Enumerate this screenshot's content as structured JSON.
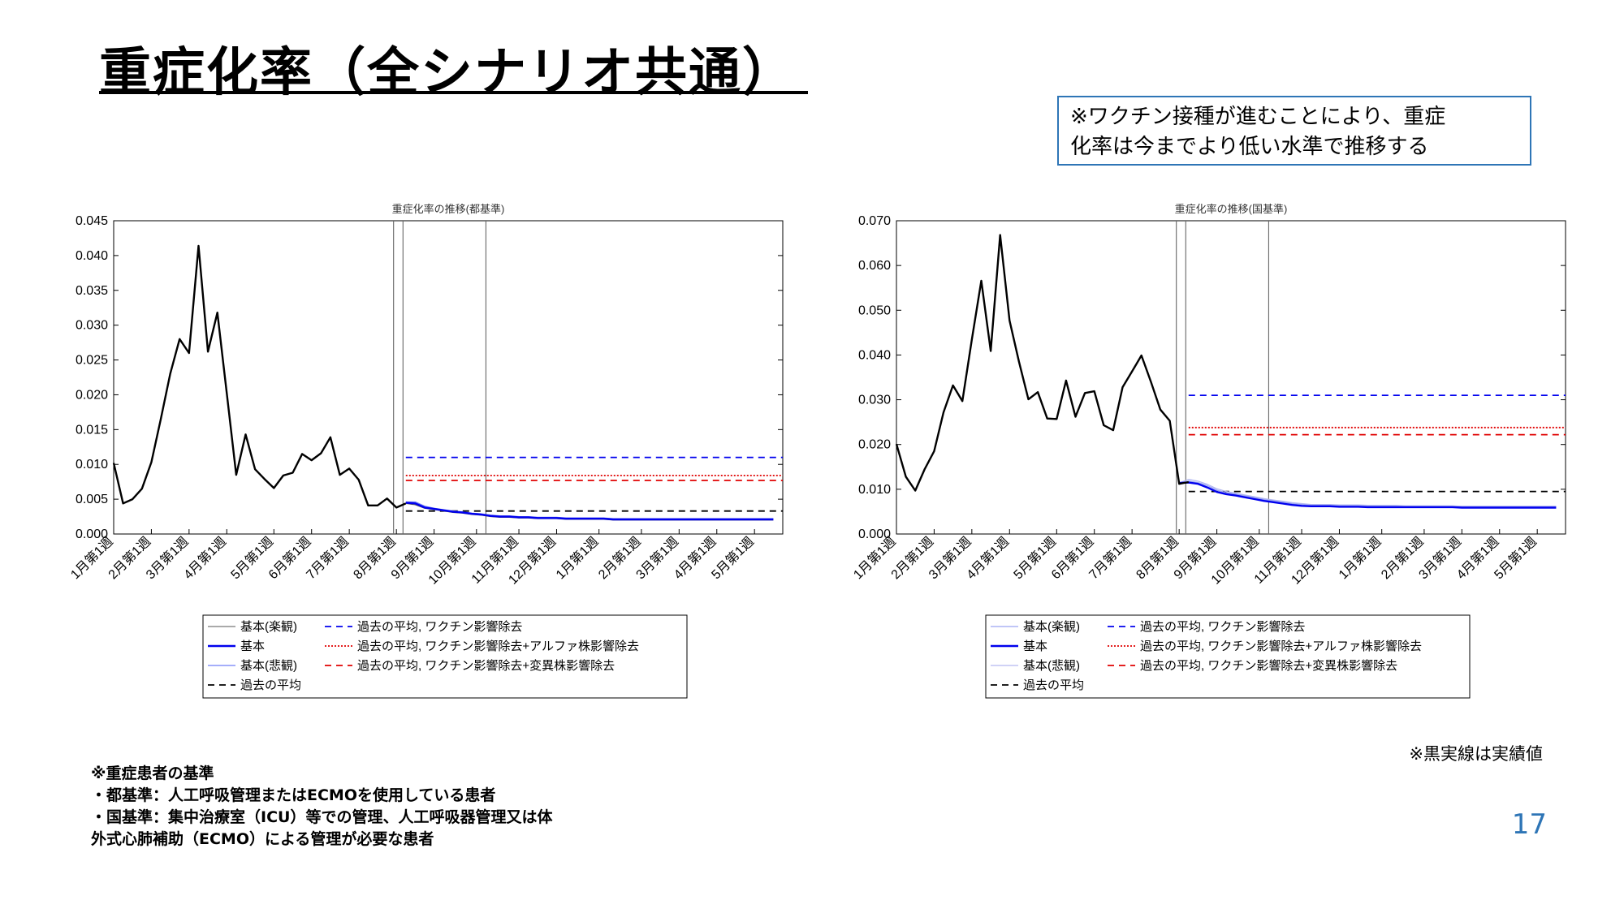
{
  "slide": {
    "title": "重症化率（全シナリオ共通）",
    "callout_line1": "※ワクチン接種が進むことにより、重症",
    "callout_line2": "化率は今までより低い水準で推移する",
    "footnote": "※重症患者の基準\n・都基準：人工呼吸管理またはECMOを使用している患者\n・国基準：集中治療室（ICU）等での管理、人工呼吸器管理又は体\n外式心肺補助（ECMO）による管理が必要な患者",
    "actual_note": "※黒実線は実績値",
    "page_number": "17"
  },
  "chart_data": [
    {
      "type": "line",
      "title": "重症化率の推移(都基準)",
      "xlabel": "",
      "ylabel": "",
      "ylim": [
        0,
        0.045
      ],
      "yticks": [
        "0.000",
        "0.005",
        "0.010",
        "0.015",
        "0.020",
        "0.025",
        "0.030",
        "0.035",
        "0.040",
        "0.045"
      ],
      "xlim": [
        0,
        71
      ],
      "xticks": [
        {
          "x": 0,
          "label": "1月第1週"
        },
        {
          "x": 4,
          "label": "2月第1週"
        },
        {
          "x": 8,
          "label": "3月第1週"
        },
        {
          "x": 12,
          "label": "4月第1週"
        },
        {
          "x": 17,
          "label": "5月第1週"
        },
        {
          "x": 21,
          "label": "6月第1週"
        },
        {
          "x": 25,
          "label": "7月第1週"
        },
        {
          "x": 30,
          "label": "8月第1週"
        },
        {
          "x": 34,
          "label": "9月第1週"
        },
        {
          "x": 38.5,
          "label": "10月第1週"
        },
        {
          "x": 43,
          "label": "11月第1週"
        },
        {
          "x": 47,
          "label": "12月第1週"
        },
        {
          "x": 51.5,
          "label": "1月第1週"
        },
        {
          "x": 56,
          "label": "2月第1週"
        },
        {
          "x": 60,
          "label": "3月第1週"
        },
        {
          "x": 64,
          "label": "4月第1週"
        },
        {
          "x": 68,
          "label": "5月第1週"
        }
      ],
      "vlines": [
        29.7,
        30.7,
        39.5
      ],
      "grid": false,
      "legend_position": "bottom",
      "series": [
        {
          "name": "実績",
          "style": "actual",
          "color": "#000000",
          "x_start": 0,
          "values": [
            0.0102,
            0.0044,
            0.005,
            0.0065,
            0.0103,
            0.0165,
            0.023,
            0.028,
            0.026,
            0.0414,
            0.0262,
            0.0318,
            0.0202,
            0.0085,
            0.0143,
            0.0093,
            0.0079,
            0.0066,
            0.0084,
            0.0088,
            0.0115,
            0.0106,
            0.0116,
            0.0139,
            0.0085,
            0.0094,
            0.0078,
            0.0041,
            0.0041,
            0.0051,
            0.0038,
            0.0044
          ]
        },
        {
          "name": "基本(楽観)",
          "style": "thin",
          "color": "#555555",
          "x_start": 31,
          "values": [
            0.0044,
            0.0042,
            0.0037,
            0.0035,
            0.0033,
            0.0031,
            0.003,
            0.0028,
            0.0027,
            0.0025,
            0.0024,
            0.0024,
            0.0023,
            0.0023,
            0.0022,
            0.0022,
            0.0022,
            0.0021,
            0.0021,
            0.0021,
            0.0021,
            0.0021,
            0.002,
            0.002,
            0.002,
            0.002,
            0.002,
            0.002,
            0.002,
            0.002,
            0.002,
            0.002,
            0.002,
            0.002,
            0.002,
            0.002,
            0.002,
            0.002,
            0.002,
            0.002
          ]
        },
        {
          "name": "基本",
          "style": "main",
          "color": "#0000ee",
          "x_start": 31,
          "values": [
            0.0045,
            0.0044,
            0.0038,
            0.0036,
            0.0034,
            0.0032,
            0.0031,
            0.0029,
            0.0028,
            0.0026,
            0.0025,
            0.0025,
            0.0024,
            0.0024,
            0.0023,
            0.0023,
            0.0023,
            0.0022,
            0.0022,
            0.0022,
            0.0022,
            0.0022,
            0.0021,
            0.0021,
            0.0021,
            0.0021,
            0.0021,
            0.0021,
            0.0021,
            0.0021,
            0.0021,
            0.0021,
            0.0021,
            0.0021,
            0.0021,
            0.0021,
            0.0021,
            0.0021,
            0.0021,
            0.0021
          ]
        },
        {
          "name": "基本(悲観)",
          "style": "light",
          "color": "#6f7df7",
          "x_start": 31,
          "values": [
            0.0046,
            0.0046,
            0.004,
            0.0037,
            0.0035,
            0.0033,
            0.0032,
            0.003,
            0.0029,
            0.0027,
            0.0026,
            0.0026,
            0.0025,
            0.0025,
            0.0024,
            0.0024,
            0.0024,
            0.0023,
            0.0023,
            0.0023,
            0.0023,
            0.0023,
            0.0022,
            0.0022,
            0.0022,
            0.0022,
            0.0022,
            0.0022,
            0.0022,
            0.0022,
            0.0022,
            0.0022,
            0.0022,
            0.0022,
            0.0022,
            0.0022,
            0.0022,
            0.0022,
            0.0022,
            0.0022
          ]
        },
        {
          "name": "過去の平均",
          "style": "dash-black",
          "color": "#000000",
          "x_start": 31,
          "x_end": 71,
          "level": 0.0033
        },
        {
          "name": "過去の平均, ワクチン影響除去",
          "style": "dash-blue",
          "color": "#0000ee",
          "x_start": 31,
          "x_end": 71,
          "level": 0.011
        },
        {
          "name": "過去の平均, ワクチン影響除去+アルファ株影響除去",
          "style": "dot-red",
          "color": "#e00000",
          "x_start": 31,
          "x_end": 71,
          "level": 0.0084
        },
        {
          "name": "過去の平均, ワクチン影響除去+変異株影響除去",
          "style": "dash-red",
          "color": "#e00000",
          "x_start": 31,
          "x_end": 71,
          "level": 0.0077
        }
      ]
    },
    {
      "type": "line",
      "title": "重症化率の推移(国基準)",
      "xlabel": "",
      "ylabel": "",
      "ylim": [
        0,
        0.07
      ],
      "yticks": [
        "0.000",
        "0.010",
        "0.020",
        "0.030",
        "0.040",
        "0.050",
        "0.060",
        "0.070"
      ],
      "xlim": [
        0,
        71
      ],
      "xticks": [
        {
          "x": 0,
          "label": "1月第1週"
        },
        {
          "x": 4,
          "label": "2月第1週"
        },
        {
          "x": 8,
          "label": "3月第1週"
        },
        {
          "x": 12,
          "label": "4月第1週"
        },
        {
          "x": 17,
          "label": "5月第1週"
        },
        {
          "x": 21,
          "label": "6月第1週"
        },
        {
          "x": 25,
          "label": "7月第1週"
        },
        {
          "x": 30,
          "label": "8月第1週"
        },
        {
          "x": 34,
          "label": "9月第1週"
        },
        {
          "x": 38.5,
          "label": "10月第1週"
        },
        {
          "x": 43,
          "label": "11月第1週"
        },
        {
          "x": 47,
          "label": "12月第1週"
        },
        {
          "x": 51.5,
          "label": "1月第1週"
        },
        {
          "x": 56,
          "label": "2月第1週"
        },
        {
          "x": 60,
          "label": "3月第1週"
        },
        {
          "x": 64,
          "label": "4月第1週"
        },
        {
          "x": 68,
          "label": "5月第1週"
        }
      ],
      "vlines": [
        29.7,
        30.7,
        39.5
      ],
      "grid": false,
      "legend_position": "bottom",
      "series": [
        {
          "name": "実績",
          "style": "actual",
          "color": "#000000",
          "x_start": 0,
          "values": [
            0.0201,
            0.0128,
            0.0097,
            0.0145,
            0.0185,
            0.0272,
            0.0332,
            0.0297,
            0.0434,
            0.0566,
            0.0409,
            0.0668,
            0.0477,
            0.0385,
            0.0301,
            0.0317,
            0.0258,
            0.0257,
            0.0343,
            0.0262,
            0.0315,
            0.0319,
            0.0243,
            0.0232,
            0.0328,
            0.0363,
            0.0399,
            0.034,
            0.0278,
            0.0253,
            0.0112,
            0.0116
          ]
        },
        {
          "name": "基本(楽観)",
          "style": "light",
          "color": "#9aa4f2",
          "x_start": 30,
          "values": [
            0.0114,
            0.0118,
            0.0115,
            0.0108,
            0.0098,
            0.0092,
            0.0089,
            0.0085,
            0.0081,
            0.0077,
            0.0074,
            0.0071,
            0.0068,
            0.0066,
            0.0064,
            0.0064,
            0.0064,
            0.0063,
            0.0063,
            0.0063,
            0.0062,
            0.0062,
            0.0062,
            0.0062,
            0.0061,
            0.0061,
            0.0061,
            0.0061,
            0.0061,
            0.0061,
            0.006,
            0.006,
            0.006,
            0.006,
            0.006,
            0.006,
            0.006,
            0.006,
            0.006,
            0.006,
            0.006
          ]
        },
        {
          "name": "基本",
          "style": "main",
          "color": "#0000ee",
          "x_start": 30,
          "values": [
            0.0114,
            0.0115,
            0.0112,
            0.0104,
            0.0094,
            0.0089,
            0.0086,
            0.0082,
            0.0078,
            0.0074,
            0.0071,
            0.0068,
            0.0065,
            0.0063,
            0.0062,
            0.0062,
            0.0062,
            0.0061,
            0.0061,
            0.0061,
            0.006,
            0.006,
            0.006,
            0.006,
            0.006,
            0.006,
            0.006,
            0.006,
            0.006,
            0.006,
            0.0059,
            0.0059,
            0.0059,
            0.0059,
            0.0059,
            0.0059,
            0.0059,
            0.0059,
            0.0059,
            0.0059,
            0.0059
          ]
        },
        {
          "name": "基本(悲観)",
          "style": "light",
          "color": "#b3b8f0",
          "x_start": 30,
          "values": [
            0.0114,
            0.0122,
            0.0118,
            0.0111,
            0.0101,
            0.0095,
            0.0091,
            0.0087,
            0.0083,
            0.0079,
            0.0076,
            0.0073,
            0.007,
            0.0068,
            0.0066,
            0.0066,
            0.0066,
            0.0065,
            0.0065,
            0.0065,
            0.0064,
            0.0064,
            0.0064,
            0.0064,
            0.0063,
            0.0063,
            0.0063,
            0.0063,
            0.0063,
            0.0063,
            0.0062,
            0.0062,
            0.0062,
            0.0062,
            0.0062,
            0.0062,
            0.0062,
            0.0062,
            0.0062,
            0.0062,
            0.0062
          ]
        },
        {
          "name": "過去の平均",
          "style": "dash-black",
          "color": "#000000",
          "x_start": 31,
          "x_end": 71,
          "level": 0.0095
        },
        {
          "name": "過去の平均, ワクチン影響除去",
          "style": "dash-blue",
          "color": "#0000ee",
          "x_start": 31,
          "x_end": 71,
          "level": 0.031
        },
        {
          "name": "過去の平均, ワクチン影響除去+アルファ株影響除去",
          "style": "dot-red",
          "color": "#e00000",
          "x_start": 31,
          "x_end": 71,
          "level": 0.0238
        },
        {
          "name": "過去の平均, ワクチン影響除去+変異株影響除去",
          "style": "dash-red",
          "color": "#e00000",
          "x_start": 31,
          "x_end": 71,
          "level": 0.0222
        }
      ]
    }
  ]
}
